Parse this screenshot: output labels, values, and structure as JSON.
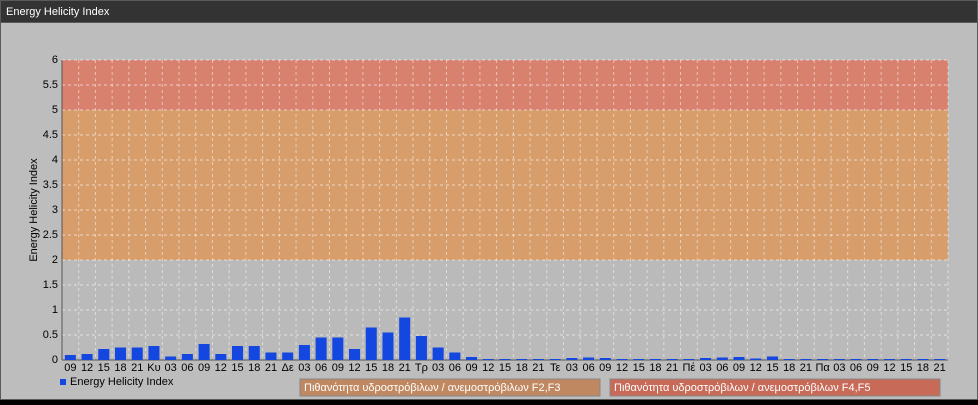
{
  "chart_data": {
    "type": "bar",
    "title": "Energy Helicity Index",
    "y_label": "Energy Helicity Index",
    "categories": [
      "09",
      "12",
      "15",
      "18",
      "21",
      "Κυ",
      "03",
      "06",
      "09",
      "12",
      "15",
      "18",
      "21",
      "Δε",
      "03",
      "06",
      "09",
      "12",
      "15",
      "18",
      "21",
      "Τρ",
      "03",
      "06",
      "09",
      "12",
      "15",
      "18",
      "21",
      "Τε",
      "03",
      "06",
      "09",
      "12",
      "15",
      "18",
      "21",
      "Πέ",
      "03",
      "06",
      "09",
      "12",
      "15",
      "18",
      "21",
      "Πα",
      "03",
      "06",
      "09",
      "12",
      "15",
      "18",
      "21"
    ],
    "series": [
      {
        "name": "Energy Helicity Index",
        "color": "#1447e0",
        "values": [
          0.1,
          0.12,
          0.22,
          0.25,
          0.25,
          0.28,
          0.07,
          0.12,
          0.32,
          0.12,
          0.28,
          0.28,
          0.15,
          0.15,
          0.3,
          0.45,
          0.45,
          0.22,
          0.65,
          0.55,
          0.85,
          0.48,
          0.25,
          0.15,
          0.06,
          0.02,
          0.02,
          0.02,
          0.02,
          0.02,
          0.04,
          0.05,
          0.04,
          0.02,
          0.02,
          0.02,
          0.02,
          0.02,
          0.04,
          0.05,
          0.06,
          0.03,
          0.07,
          0.02,
          0.02,
          0.02,
          0.02,
          0.02,
          0.02,
          0.02,
          0.02,
          0.02,
          0.02
        ]
      }
    ],
    "ylim": [
      0,
      6
    ],
    "yticks": [
      0,
      0.5,
      1,
      1.5,
      2,
      2.5,
      3,
      3.5,
      4,
      4.5,
      5,
      5.5,
      6
    ],
    "grid": true,
    "bands": [
      {
        "from": 0,
        "to": 2,
        "color": "#b9b9b9"
      },
      {
        "from": 2,
        "to": 5,
        "color": "#d99a62",
        "label": "Πιθανότητα υδροστρόβιλων / ανεμοστρόβιλων F2,F3"
      },
      {
        "from": 5,
        "to": 6,
        "color": "#dc7a66",
        "label": "Πιθανότητα υδροστρόβιλων / ανεμοστρόβιλων F4,F5"
      }
    ]
  }
}
